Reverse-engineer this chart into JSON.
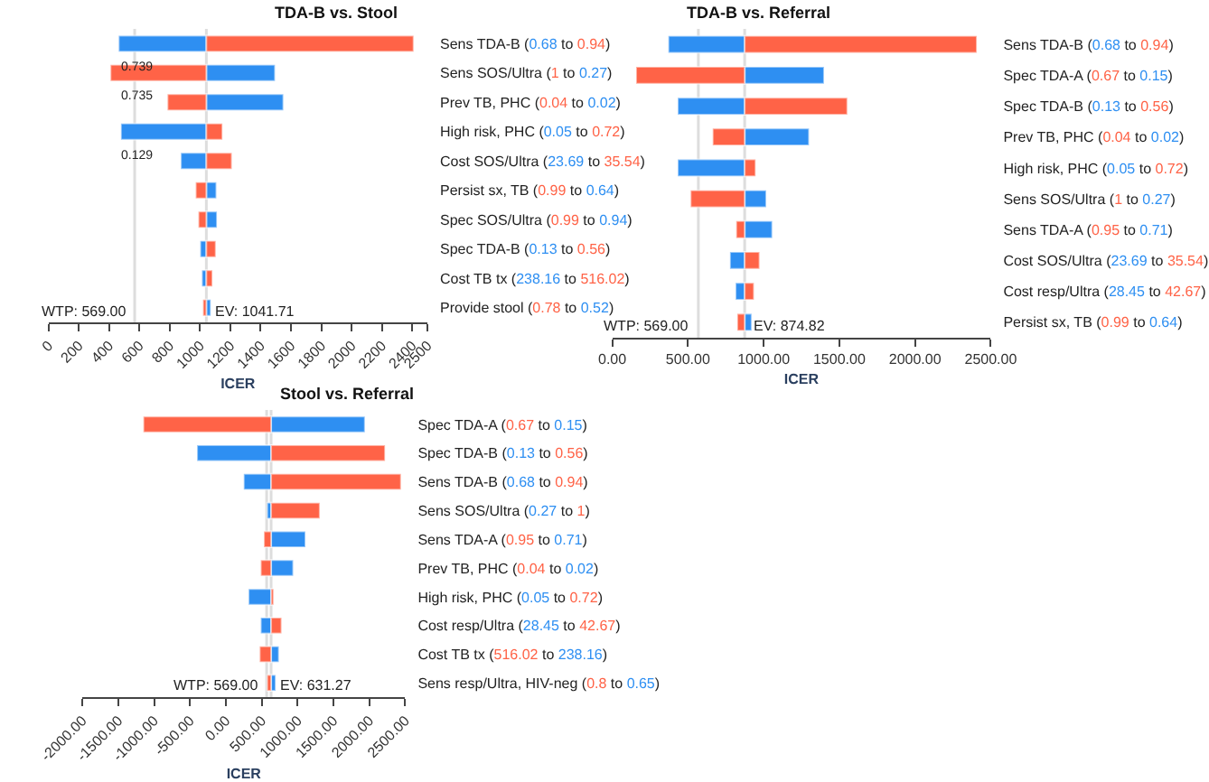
{
  "chart_data": [
    {
      "type": "bar",
      "orientation": "horizontal",
      "title": "TDA-B vs. Stool",
      "xlabel": "ICER",
      "categories": [
        "Sens TDA-B (0.68 to 0.94)",
        "Sens SOS/Ultra (1 to 0.27)",
        "Prev TB, PHC (0.04 to 0.02)",
        "High risk, PHC (0.05 to 0.72)",
        "Cost SOS/Ultra (23.69 to 35.54)",
        "Persist sx, TB (0.99 to 0.64)",
        "Spec SOS/Ultra (0.99 to 0.94)",
        "Spec TDA-B (0.13 to 0.56)",
        "Cost TB tx (238.16 to 516.02)",
        "Provide stool (0.78 to 0.52)"
      ],
      "series": [
        {
          "color": "#2e8ff2",
          "base": [
            1041.71,
            1041.71,
            1041.71,
            1041.71,
            1041.71,
            1041.71,
            1041.71,
            1041.71,
            1041.71,
            1041.71
          ],
          "values": [
            -578,
            453,
            508,
            -563,
            -168,
            66,
            70,
            -40,
            -29,
            29
          ]
        },
        {
          "color": "#ff6347",
          "base": [
            1041.71,
            1041.71,
            1041.71,
            1041.71,
            1041.71,
            1041.71,
            1041.71,
            1041.71,
            1041.71,
            1041.71
          ],
          "values": [
            1367,
            -632,
            -256,
            106,
            168,
            -70,
            -52,
            62,
            40,
            -22
          ]
        }
      ],
      "xlim": [
        0,
        2500
      ],
      "xticks": [
        0,
        200,
        400,
        600,
        800,
        1000,
        1200,
        1400,
        1600,
        1800,
        2000,
        2200,
        2400,
        2500
      ],
      "ref_lines": [
        {
          "axis": "x",
          "value": 569,
          "label": "WTP: 569.00",
          "color": "#dddddd"
        },
        {
          "axis": "x",
          "value": 1041.71,
          "label": "EV: 1041.71",
          "color": "#dddddd"
        }
      ],
      "annotations": [
        "0.739",
        "0.735",
        "0.129"
      ]
    },
    {
      "type": "bar",
      "orientation": "horizontal",
      "title": "TDA-B vs. Referral",
      "xlabel": "ICER",
      "categories": [
        "Sens TDA-B (0.68 to 0.94)",
        "Spec TDA-A (0.67 to 0.15)",
        "Spec TDA-B (0.13 to 0.56)",
        "Prev TB, PHC (0.04 to 0.02)",
        "High risk, PHC (0.05 to 0.72)",
        "Sens SOS/Ultra (1 to 0.27)",
        "Sens TDA-A (0.95 to 0.71)",
        "Cost SOS/Ultra (23.69 to 35.54)",
        "Cost resp/Ultra (28.45 to 42.67)",
        "Persist sx, TB (0.99 to 0.64)"
      ],
      "series": [
        {
          "color": "#2e8ff2",
          "base": [
            874.82,
            874.82,
            874.82,
            874.82,
            874.82,
            874.82,
            874.82,
            874.82,
            874.82,
            874.82
          ],
          "values": [
            -504,
            524,
            -442,
            425,
            -442,
            142,
            182,
            -97,
            -60,
            46
          ]
        },
        {
          "color": "#ff6347",
          "base": [
            874.82,
            874.82,
            874.82,
            874.82,
            874.82,
            874.82,
            874.82,
            874.82,
            874.82,
            874.82
          ],
          "values": [
            1533,
            -717,
            678,
            -211,
            72,
            -357,
            -56,
            98,
            61,
            -49
          ]
        }
      ],
      "xlim": [
        0,
        2500
      ],
      "xticks": [
        {
          "value": 0,
          "label": "0.00"
        },
        {
          "value": 500,
          "label": "500.00"
        },
        {
          "value": 1000,
          "label": "1000.00"
        },
        {
          "value": 1500,
          "label": "1500.00"
        },
        {
          "value": 2000,
          "label": "2000.00"
        },
        {
          "value": 2500,
          "label": "2500.00"
        }
      ],
      "ref_lines": [
        {
          "axis": "x",
          "value": 569,
          "label": "WTP: 569.00",
          "color": "#dddddd"
        },
        {
          "axis": "x",
          "value": 874.82,
          "label": "EV: 874.82",
          "color": "#dddddd"
        }
      ]
    },
    {
      "type": "bar",
      "orientation": "horizontal",
      "title": "Stool vs. Referral",
      "xlabel": "ICER",
      "categories": [
        "Spec TDA-A (0.67 to 0.15)",
        "Spec TDA-B (0.13 to 0.56)",
        "Sens TDA-B (0.68 to 0.94)",
        "Sens SOS/Ultra (0.27 to 1)",
        "Sens TDA-A (0.95 to 0.71)",
        "Prev TB, PHC (0.04 to 0.02)",
        "High risk, PHC (0.05 to 0.72)",
        "Cost resp/Ultra (28.45 to 42.67)",
        "Cost TB tx (516.02 to 238.16)",
        "Sens resp/Ultra, HIV-neg (0.8 to 0.65)"
      ],
      "series": [
        {
          "color": "#2e8ff2",
          "base": [
            631.27,
            631.27,
            631.27,
            631.27,
            631.27,
            631.27,
            631.27,
            631.27,
            631.27,
            631.27
          ],
          "values": [
            1307,
            -1032,
            -381,
            -55,
            478,
            308,
            -314,
            -144,
            108,
            63
          ]
        },
        {
          "color": "#ff6347",
          "base": [
            631.27,
            631.27,
            631.27,
            631.27,
            631.27,
            631.27,
            631.27,
            631.27,
            631.27,
            631.27
          ],
          "values": [
            -1780,
            1588,
            1810,
            678,
            -100,
            -144,
            34,
            145,
            -159,
            -55
          ]
        }
      ],
      "xlim": [
        -2000,
        2500
      ],
      "xticks": [
        {
          "value": -2000,
          "label": "-2000.00"
        },
        {
          "value": -1500,
          "label": "-1500.00"
        },
        {
          "value": -1000,
          "label": "-1000.00"
        },
        {
          "value": -500,
          "label": "-500.00"
        },
        {
          "value": 0,
          "label": "0.00"
        },
        {
          "value": 500,
          "label": "500.00"
        },
        {
          "value": 1000,
          "label": "1000.00"
        },
        {
          "value": 1500,
          "label": "1500.00"
        },
        {
          "value": 2000,
          "label": "2000.00"
        },
        {
          "value": 2500,
          "label": "2500.00"
        }
      ],
      "ref_lines": [
        {
          "axis": "x",
          "value": 569,
          "label": "WTP: 569.00",
          "color": "#dddddd"
        },
        {
          "axis": "x",
          "value": 631.27,
          "label": "EV: 631.27",
          "color": "#dddddd"
        }
      ]
    }
  ]
}
